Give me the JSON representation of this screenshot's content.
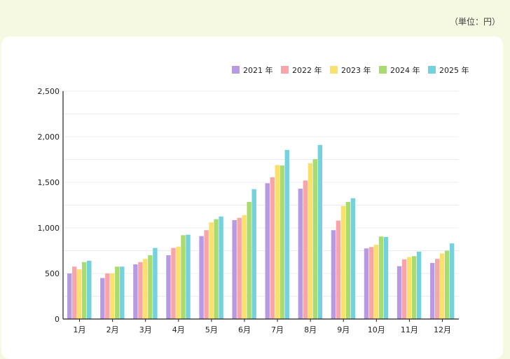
{
  "unit_label": "（単位：円）",
  "chart_data": {
    "type": "bar",
    "categories": [
      "1月",
      "2月",
      "3月",
      "4月",
      "5月",
      "6月",
      "7月",
      "8月",
      "9月",
      "10月",
      "11月",
      "12月"
    ],
    "series": [
      {
        "name": "2021 年",
        "color": "#b79ae3",
        "values": [
          500,
          450,
          600,
          700,
          910,
          1085,
          1490,
          1430,
          975,
          775,
          580,
          615
        ]
      },
      {
        "name": "2022 年",
        "color": "#f9a4a8",
        "values": [
          575,
          500,
          625,
          780,
          975,
          1110,
          1555,
          1520,
          1080,
          790,
          655,
          660
        ]
      },
      {
        "name": "2023 年",
        "color": "#fbe06b",
        "values": [
          545,
          500,
          660,
          795,
          1060,
          1140,
          1690,
          1710,
          1240,
          815,
          680,
          720
        ]
      },
      {
        "name": "2024 年",
        "color": "#a8dc6f",
        "values": [
          625,
          575,
          700,
          920,
          1095,
          1285,
          1685,
          1755,
          1285,
          905,
          690,
          750
        ]
      },
      {
        "name": "2025 年",
        "color": "#74d1de",
        "values": [
          640,
          575,
          780,
          925,
          1125,
          1425,
          1855,
          1910,
          1325,
          900,
          740,
          830
        ]
      }
    ],
    "y_ticks": [
      "0",
      "500",
      "1,000",
      "1,500",
      "2,000",
      "2,500"
    ],
    "ylim": [
      0,
      2500
    ],
    "grid": true,
    "legend_position": "top-right"
  }
}
